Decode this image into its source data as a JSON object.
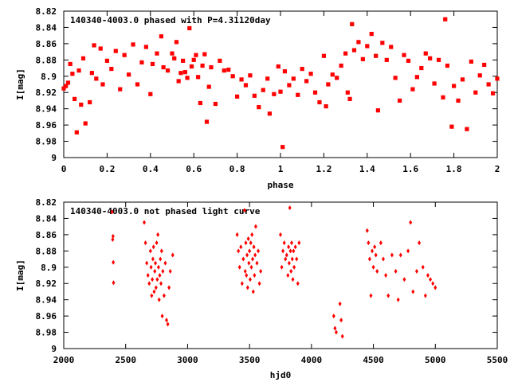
{
  "chart_data": [
    {
      "type": "scatter",
      "title": "140340-4003.0 phased with P=4.31120day",
      "xlabel": "phase",
      "ylabel": "I[mag]",
      "xlim": [
        0,
        2
      ],
      "ylim": [
        9,
        8.82
      ],
      "y_axis_inverted": true,
      "grid": false,
      "marker_color": "#ff0000",
      "xticks": [
        "0",
        "0.2",
        "0.4",
        "0.6",
        "0.8",
        "1",
        "1.2",
        "1.4",
        "1.6",
        "1.8",
        "2"
      ],
      "yticks": [
        "8.82",
        "8.84",
        "8.86",
        "8.88",
        "8.9",
        "8.92",
        "8.94",
        "8.96",
        "8.98",
        "9"
      ],
      "series": [
        {
          "points": [
            [
              0.0,
              8.915
            ],
            [
              0.01,
              8.912
            ],
            [
              0.02,
              8.908
            ],
            [
              0.03,
              8.885
            ],
            [
              0.04,
              8.897
            ],
            [
              0.05,
              8.928
            ],
            [
              0.06,
              8.969
            ],
            [
              0.07,
              8.893
            ],
            [
              0.08,
              8.935
            ],
            [
              0.09,
              8.878
            ],
            [
              0.1,
              8.958
            ],
            [
              0.12,
              8.932
            ],
            [
              0.13,
              8.896
            ],
            [
              0.14,
              8.862
            ],
            [
              0.15,
              8.903
            ],
            [
              0.17,
              8.866
            ],
            [
              0.18,
              8.91
            ],
            [
              0.2,
              8.881
            ],
            [
              0.22,
              8.891
            ],
            [
              0.24,
              8.869
            ],
            [
              0.26,
              8.916
            ],
            [
              0.28,
              8.874
            ],
            [
              0.3,
              8.898
            ],
            [
              0.32,
              8.861
            ],
            [
              0.34,
              8.91
            ],
            [
              0.36,
              8.883
            ],
            [
              0.38,
              8.864
            ],
            [
              0.4,
              8.922
            ],
            [
              0.41,
              8.885
            ],
            [
              0.43,
              8.872
            ],
            [
              0.45,
              8.851
            ],
            [
              0.46,
              8.889
            ],
            [
              0.48,
              8.893
            ],
            [
              0.5,
              8.872
            ],
            [
              0.51,
              8.878
            ],
            [
              0.52,
              8.858
            ],
            [
              0.53,
              8.906
            ],
            [
              0.54,
              8.896
            ],
            [
              0.55,
              8.881
            ],
            [
              0.56,
              8.895
            ],
            [
              0.57,
              8.902
            ],
            [
              0.58,
              8.841
            ],
            [
              0.59,
              8.888
            ],
            [
              0.6,
              8.88
            ],
            [
              0.61,
              8.874
            ],
            [
              0.62,
              8.901
            ],
            [
              0.63,
              8.933
            ],
            [
              0.64,
              8.887
            ],
            [
              0.65,
              8.873
            ],
            [
              0.66,
              8.956
            ],
            [
              0.67,
              8.913
            ],
            [
              0.68,
              8.889
            ],
            [
              0.7,
              8.934
            ],
            [
              0.72,
              8.881
            ],
            [
              0.74,
              8.893
            ],
            [
              0.76,
              8.892
            ],
            [
              0.78,
              8.9
            ],
            [
              0.8,
              8.925
            ],
            [
              0.82,
              8.904
            ],
            [
              0.84,
              8.911
            ],
            [
              0.86,
              8.899
            ],
            [
              0.88,
              8.924
            ],
            [
              0.9,
              8.938
            ],
            [
              0.92,
              8.917
            ],
            [
              0.94,
              8.903
            ],
            [
              0.95,
              8.946
            ],
            [
              0.97,
              8.922
            ],
            [
              0.99,
              8.888
            ],
            [
              1.0,
              8.919
            ],
            [
              1.01,
              8.987
            ],
            [
              1.02,
              8.894
            ],
            [
              1.04,
              8.911
            ],
            [
              1.06,
              8.903
            ],
            [
              1.08,
              8.923
            ],
            [
              1.1,
              8.891
            ],
            [
              1.12,
              8.906
            ],
            [
              1.14,
              8.897
            ],
            [
              1.16,
              8.92
            ],
            [
              1.18,
              8.932
            ],
            [
              1.2,
              8.875
            ],
            [
              1.21,
              8.937
            ],
            [
              1.22,
              8.91
            ],
            [
              1.24,
              8.898
            ],
            [
              1.26,
              8.902
            ],
            [
              1.28,
              8.887
            ],
            [
              1.3,
              8.872
            ],
            [
              1.31,
              8.92
            ],
            [
              1.32,
              8.928
            ],
            [
              1.33,
              8.836
            ],
            [
              1.34,
              8.868
            ],
            [
              1.36,
              8.858
            ],
            [
              1.38,
              8.879
            ],
            [
              1.4,
              8.863
            ],
            [
              1.42,
              8.848
            ],
            [
              1.44,
              8.875
            ],
            [
              1.45,
              8.942
            ],
            [
              1.47,
              8.859
            ],
            [
              1.49,
              8.88
            ],
            [
              1.51,
              8.864
            ],
            [
              1.53,
              8.902
            ],
            [
              1.55,
              8.93
            ],
            [
              1.57,
              8.874
            ],
            [
              1.59,
              8.881
            ],
            [
              1.61,
              8.916
            ],
            [
              1.63,
              8.901
            ],
            [
              1.65,
              8.89
            ],
            [
              1.67,
              8.872
            ],
            [
              1.69,
              8.878
            ],
            [
              1.71,
              8.909
            ],
            [
              1.73,
              8.88
            ],
            [
              1.75,
              8.926
            ],
            [
              1.76,
              8.83
            ],
            [
              1.77,
              8.887
            ],
            [
              1.79,
              8.962
            ],
            [
              1.8,
              8.912
            ],
            [
              1.82,
              8.93
            ],
            [
              1.84,
              8.904
            ],
            [
              1.86,
              8.965
            ],
            [
              1.88,
              8.882
            ],
            [
              1.9,
              8.92
            ],
            [
              1.92,
              8.899
            ],
            [
              1.94,
              8.886
            ],
            [
              1.96,
              8.91
            ],
            [
              1.98,
              8.921
            ],
            [
              2.0,
              8.903
            ]
          ]
        }
      ]
    },
    {
      "type": "scatter",
      "title": "140340-4003.0 not phased light curve",
      "xlabel": "hjd0",
      "ylabel": "I[mag]",
      "xlim": [
        2000,
        5500
      ],
      "ylim": [
        9,
        8.82
      ],
      "y_axis_inverted": true,
      "grid": false,
      "marker_color": "#ff0000",
      "xticks": [
        "2000",
        "2500",
        "3000",
        "3500",
        "4000",
        "4500",
        "5000",
        "5500"
      ],
      "yticks": [
        "8.82",
        "8.84",
        "8.86",
        "8.88",
        "8.9",
        "8.92",
        "8.94",
        "8.96",
        "8.98",
        "9"
      ],
      "series": [
        {
          "points": [
            [
              2390,
              8.832
            ],
            [
              2395,
              8.866
            ],
            [
              2398,
              8.862
            ],
            [
              2400,
              8.894
            ],
            [
              2402,
              8.919
            ],
            [
              2650,
              8.845
            ],
            [
              2660,
              8.87
            ],
            [
              2670,
              8.895
            ],
            [
              2680,
              8.91
            ],
            [
              2690,
              8.92
            ],
            [
              2700,
              8.88
            ],
            [
              2705,
              8.9
            ],
            [
              2710,
              8.935
            ],
            [
              2715,
              8.915
            ],
            [
              2720,
              8.89
            ],
            [
              2725,
              8.875
            ],
            [
              2730,
              8.93
            ],
            [
              2735,
              8.905
            ],
            [
              2740,
              8.895
            ],
            [
              2745,
              8.925
            ],
            [
              2750,
              8.87
            ],
            [
              2755,
              8.915
            ],
            [
              2760,
              8.86
            ],
            [
              2765,
              8.9
            ],
            [
              2770,
              8.94
            ],
            [
              2775,
              8.91
            ],
            [
              2780,
              8.89
            ],
            [
              2785,
              8.92
            ],
            [
              2790,
              8.88
            ],
            [
              2795,
              8.96
            ],
            [
              2800,
              8.905
            ],
            [
              2810,
              8.935
            ],
            [
              2820,
              8.895
            ],
            [
              2830,
              8.965
            ],
            [
              2840,
              8.97
            ],
            [
              2850,
              8.925
            ],
            [
              2860,
              8.905
            ],
            [
              2880,
              8.885
            ],
            [
              3400,
              8.86
            ],
            [
              3410,
              8.88
            ],
            [
              3420,
              8.9
            ],
            [
              3430,
              8.875
            ],
            [
              3440,
              8.92
            ],
            [
              3450,
              8.89
            ],
            [
              3460,
              8.83
            ],
            [
              3465,
              8.905
            ],
            [
              3470,
              8.87
            ],
            [
              3475,
              8.91
            ],
            [
              3480,
              8.885
            ],
            [
              3485,
              8.925
            ],
            [
              3490,
              8.865
            ],
            [
              3495,
              8.895
            ],
            [
              3500,
              8.88
            ],
            [
              3505,
              8.915
            ],
            [
              3510,
              8.87
            ],
            [
              3515,
              8.9
            ],
            [
              3520,
              8.86
            ],
            [
              3525,
              8.89
            ],
            [
              3530,
              8.93
            ],
            [
              3535,
              8.875
            ],
            [
              3540,
              8.91
            ],
            [
              3545,
              8.885
            ],
            [
              3550,
              8.85
            ],
            [
              3560,
              8.895
            ],
            [
              3570,
              8.88
            ],
            [
              3580,
              8.92
            ],
            [
              3590,
              8.905
            ],
            [
              3750,
              8.86
            ],
            [
              3760,
              8.9
            ],
            [
              3770,
              8.88
            ],
            [
              3780,
              8.87
            ],
            [
              3790,
              8.89
            ],
            [
              3800,
              8.885
            ],
            [
              3810,
              8.91
            ],
            [
              3815,
              8.875
            ],
            [
              3820,
              8.895
            ],
            [
              3825,
              8.827
            ],
            [
              3830,
              8.88
            ],
            [
              3835,
              8.905
            ],
            [
              3840,
              8.87
            ],
            [
              3845,
              8.89
            ],
            [
              3850,
              8.915
            ],
            [
              3855,
              8.88
            ],
            [
              3860,
              8.9
            ],
            [
              3870,
              8.875
            ],
            [
              3880,
              8.89
            ],
            [
              3890,
              8.92
            ],
            [
              3900,
              8.87
            ],
            [
              4180,
              8.96
            ],
            [
              4190,
              8.975
            ],
            [
              4200,
              8.98
            ],
            [
              4230,
              8.945
            ],
            [
              4240,
              8.965
            ],
            [
              4250,
              8.985
            ],
            [
              4450,
              8.855
            ],
            [
              4460,
              8.87
            ],
            [
              4470,
              8.89
            ],
            [
              4480,
              8.935
            ],
            [
              4490,
              8.88
            ],
            [
              4500,
              8.9
            ],
            [
              4510,
              8.875
            ],
            [
              4520,
              8.885
            ],
            [
              4530,
              8.905
            ],
            [
              4560,
              8.87
            ],
            [
              4580,
              8.89
            ],
            [
              4600,
              8.91
            ],
            [
              4620,
              8.935
            ],
            [
              4650,
              8.885
            ],
            [
              4680,
              8.905
            ],
            [
              4700,
              8.94
            ],
            [
              4720,
              8.885
            ],
            [
              4750,
              8.915
            ],
            [
              4780,
              8.88
            ],
            [
              4800,
              8.845
            ],
            [
              4820,
              8.93
            ],
            [
              4850,
              8.905
            ],
            [
              4870,
              8.87
            ],
            [
              4900,
              8.9
            ],
            [
              4920,
              8.935
            ],
            [
              4940,
              8.91
            ],
            [
              4960,
              8.915
            ],
            [
              4980,
              8.92
            ],
            [
              5000,
              8.925
            ]
          ]
        }
      ]
    }
  ]
}
